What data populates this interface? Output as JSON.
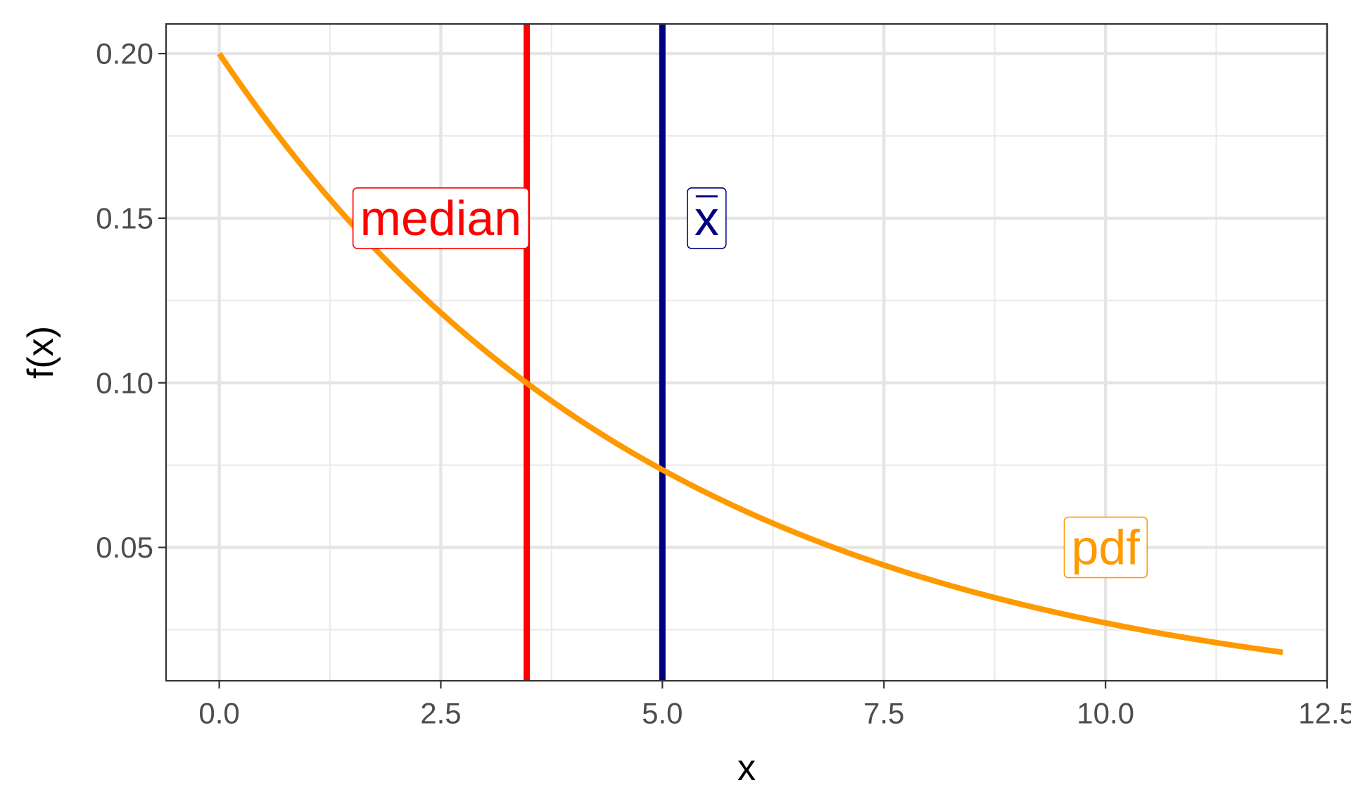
{
  "chart_data": {
    "type": "line",
    "xlabel": "x",
    "ylabel": "f(x)",
    "xlim": [
      -0.6,
      12.5
    ],
    "ylim": [
      0.0095,
      0.209
    ],
    "x_ticks": [
      0.0,
      2.5,
      5.0,
      7.5,
      10.0,
      12.5
    ],
    "x_tick_labels": [
      "0.0",
      "2.5",
      "5.0",
      "7.5",
      "10.0",
      "12.5"
    ],
    "y_ticks": [
      0.05,
      0.1,
      0.15,
      0.2
    ],
    "y_tick_labels": [
      "0.05",
      "0.10",
      "0.15",
      "0.20"
    ],
    "x_minor_ticks": [
      1.25,
      3.75,
      6.25,
      8.75,
      11.25
    ],
    "y_minor_ticks": [
      0.025,
      0.075,
      0.125,
      0.175
    ],
    "grid": true,
    "series": [
      {
        "name": "pdf",
        "color": "#FF9900",
        "rate": 0.2,
        "x": [
          0,
          0.5,
          1,
          1.5,
          2,
          2.5,
          3,
          3.5,
          4,
          4.5,
          5,
          5.5,
          6,
          6.5,
          7,
          7.5,
          8,
          8.5,
          9,
          9.5,
          10,
          10.5,
          11,
          11.5,
          12
        ],
        "y": [
          0.2,
          0.181,
          0.1637,
          0.1482,
          0.1341,
          0.1213,
          0.1098,
          0.0993,
          0.0899,
          0.0813,
          0.0736,
          0.0666,
          0.0602,
          0.0545,
          0.0493,
          0.0446,
          0.0404,
          0.0365,
          0.0331,
          0.0299,
          0.0271,
          0.0245,
          0.0222,
          0.02,
          0.0181
        ]
      }
    ],
    "vlines": [
      {
        "name": "median",
        "x": 3.47,
        "color": "#FF0000"
      },
      {
        "name": "mean",
        "x": 5.0,
        "color": "#000080"
      }
    ],
    "annotations": [
      {
        "label": "median",
        "x": 2.5,
        "y": 0.15,
        "color": "#FF0000"
      },
      {
        "label": "x",
        "overline": true,
        "x": 5.5,
        "y": 0.15,
        "color": "#000080"
      },
      {
        "label": "pdf",
        "x": 10.0,
        "y": 0.05,
        "color": "#FF9900"
      }
    ]
  }
}
